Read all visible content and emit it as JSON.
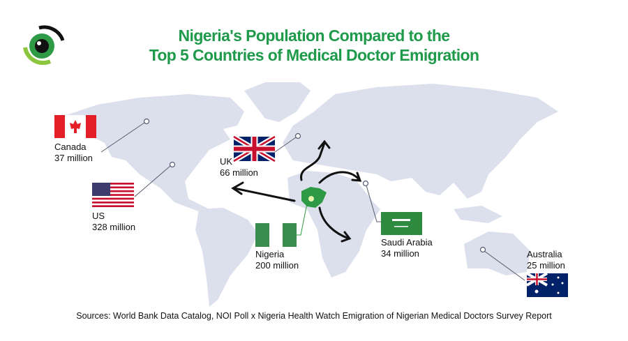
{
  "title": {
    "line1": "Nigeria's Population Compared to the",
    "line2": "Top 5 Countries of Medical Doctor Emigration"
  },
  "colors": {
    "title": "#1f9a4a",
    "map": "#dcdfec",
    "nigeria": "#2e9a46",
    "lines": "#555a6e"
  },
  "countries": [
    {
      "name": "Canada",
      "population": "37 million",
      "flag": "canada-flag"
    },
    {
      "name": "US",
      "population": "328 million",
      "flag": "us-flag"
    },
    {
      "name": "UK",
      "population": "66 million",
      "flag": "uk-flag"
    },
    {
      "name": "Nigeria",
      "population": "200 million",
      "flag": "nigeria-flag"
    },
    {
      "name": "Saudi Arabia",
      "population": "34 million",
      "flag": "saudi-flag"
    },
    {
      "name": "Australia",
      "population": "25 million",
      "flag": "australia-flag"
    }
  ],
  "sources": "Sources: World Bank Data Catalog, NOI Poll x Nigeria Health Watch Emigration of Nigerian Medical Doctors Survey Report"
}
